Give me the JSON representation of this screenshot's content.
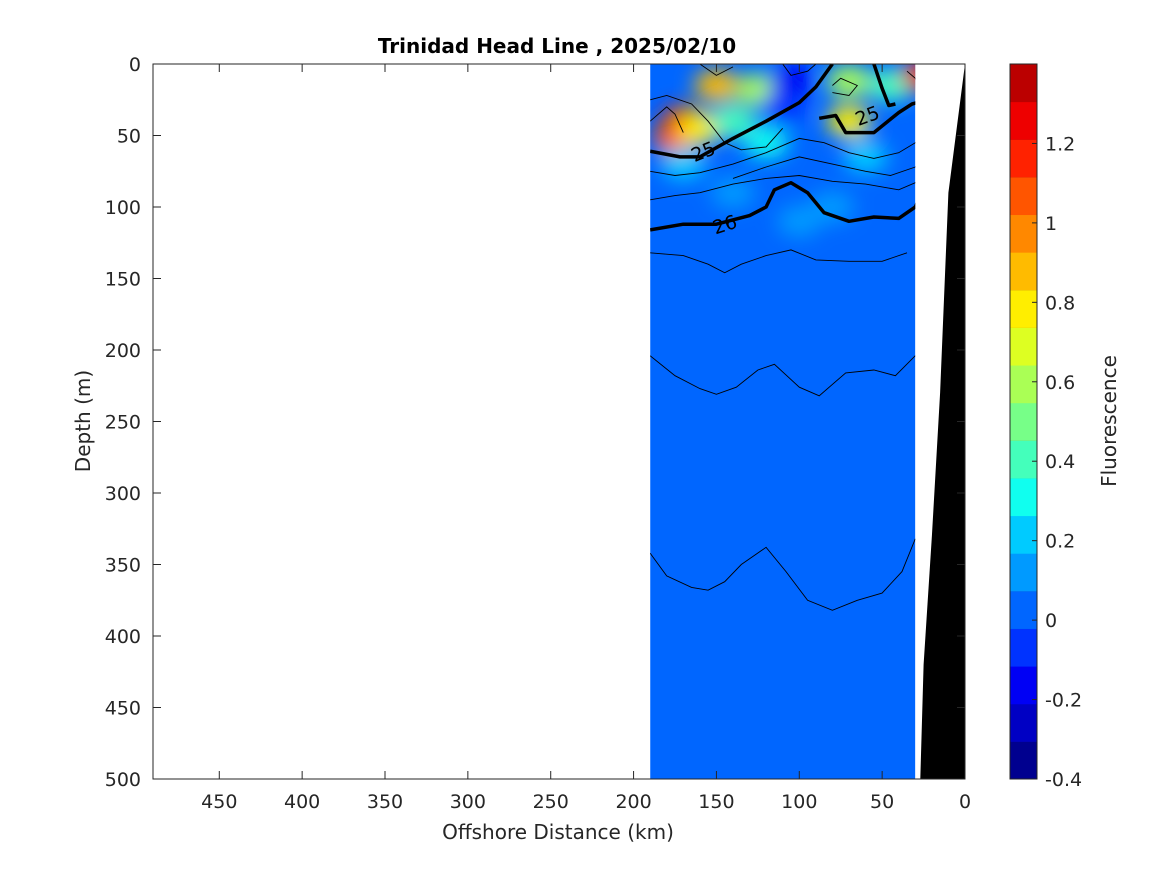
{
  "chart_data": {
    "type": "heatmap",
    "title": "Trinidad Head Line , 2025/02/10",
    "xlabel": "Offshore Distance (km)",
    "ylabel": "Depth (m)",
    "xlim": [
      490,
      0
    ],
    "ylim": [
      0,
      500
    ],
    "x_reversed": true,
    "y_reversed": true,
    "xticks": [
      450,
      400,
      350,
      300,
      250,
      200,
      150,
      100,
      50,
      0
    ],
    "yticks": [
      0,
      50,
      100,
      150,
      200,
      250,
      300,
      350,
      400,
      450,
      500
    ],
    "colorbar": {
      "label": "Fluorescence",
      "range": [
        -0.4,
        1.4
      ],
      "ticks": [
        "-0.4",
        "-0.2",
        "0",
        "0.2",
        "0.4",
        "0.6",
        "0.8",
        "1",
        "1.2"
      ],
      "tick_values": [
        -0.4,
        -0.2,
        0,
        0.2,
        0.4,
        0.6,
        0.8,
        1.0,
        1.2
      ],
      "colors": [
        "#00008f",
        "#0000c4",
        "#0000f5",
        "#0033ff",
        "#0066ff",
        "#009aff",
        "#00cbff",
        "#10ffef",
        "#44ffbb",
        "#77ff88",
        "#aaff55",
        "#ddff22",
        "#ffee00",
        "#ffbb00",
        "#ff8800",
        "#ff5500",
        "#ff2200",
        "#ee0000",
        "#bb0000"
      ]
    },
    "data_extent_km": [
      190,
      30
    ],
    "background_value": 0.05,
    "patches": [
      {
        "x": 170,
        "y": 40,
        "value": 1.25
      },
      {
        "x": 175,
        "y": 52,
        "value": 1.05
      },
      {
        "x": 150,
        "y": 15,
        "value": 0.9
      },
      {
        "x": 160,
        "y": 45,
        "value": 0.8
      },
      {
        "x": 125,
        "y": 18,
        "value": 0.55
      },
      {
        "x": 105,
        "y": 12,
        "value": -0.15
      },
      {
        "x": 110,
        "y": 30,
        "value": -0.05
      },
      {
        "x": 70,
        "y": 12,
        "value": 0.6
      },
      {
        "x": 70,
        "y": 40,
        "value": 0.8
      },
      {
        "x": 45,
        "y": 15,
        "value": 0.45
      },
      {
        "x": 25,
        "y": 8,
        "value": 1.3
      },
      {
        "x": 140,
        "y": 40,
        "value": 0.45
      },
      {
        "x": 120,
        "y": 55,
        "value": 0.3
      },
      {
        "x": 60,
        "y": 65,
        "value": 0.25
      },
      {
        "x": 170,
        "y": 70,
        "value": 0.2
      },
      {
        "x": 140,
        "y": 90,
        "value": 0.1
      },
      {
        "x": 80,
        "y": 100,
        "value": 0.15
      },
      {
        "x": 100,
        "y": 110,
        "value": 0.12
      }
    ],
    "density_contours": [
      {
        "label": "25",
        "points": [
          [
            190,
            61
          ],
          [
            172,
            65
          ],
          [
            160,
            65
          ],
          [
            140,
            52
          ],
          [
            120,
            40
          ],
          [
            100,
            27
          ],
          [
            90,
            16
          ],
          [
            80,
            0
          ]
        ]
      },
      {
        "label": "25",
        "points": [
          [
            88,
            38
          ],
          [
            78,
            36
          ],
          [
            72,
            48
          ],
          [
            55,
            48
          ],
          [
            40,
            34
          ],
          [
            32,
            28
          ],
          [
            22,
            25
          ]
        ]
      },
      {
        "label": "25",
        "points": [
          [
            55,
            0
          ],
          [
            50,
            17
          ],
          [
            46,
            29
          ],
          [
            42,
            28
          ]
        ]
      },
      {
        "label": "26",
        "points": [
          [
            190,
            116
          ],
          [
            170,
            112
          ],
          [
            150,
            112
          ],
          [
            130,
            106
          ],
          [
            120,
            100
          ],
          [
            115,
            88
          ],
          [
            105,
            83
          ],
          [
            95,
            90
          ],
          [
            85,
            104
          ],
          [
            70,
            110
          ],
          [
            55,
            107
          ],
          [
            40,
            108
          ],
          [
            30,
            100
          ],
          [
            22,
            80
          ]
        ]
      }
    ],
    "contour_labels": [
      {
        "text": "25",
        "x": 158,
        "y": 61,
        "angle": -22
      },
      {
        "text": "25",
        "x": 59,
        "y": 36,
        "angle": -20
      },
      {
        "text": "26",
        "x": 145,
        "y": 112,
        "angle": -18
      }
    ],
    "thin_contours": [
      [
        [
          190,
          25
        ],
        [
          180,
          22
        ],
        [
          165,
          28
        ],
        [
          155,
          40
        ],
        [
          145,
          55
        ],
        [
          135,
          60
        ],
        [
          120,
          58
        ],
        [
          110,
          45
        ]
      ],
      [
        [
          190,
          40
        ],
        [
          180,
          30
        ],
        [
          175,
          35
        ],
        [
          170,
          48
        ]
      ],
      [
        [
          190,
          75
        ],
        [
          175,
          78
        ],
        [
          160,
          76
        ],
        [
          140,
          70
        ],
        [
          120,
          62
        ],
        [
          100,
          52
        ],
        [
          85,
          55
        ],
        [
          70,
          62
        ],
        [
          55,
          66
        ],
        [
          40,
          62
        ],
        [
          30,
          55
        ],
        [
          22,
          48
        ]
      ],
      [
        [
          140,
          80
        ],
        [
          120,
          72
        ],
        [
          100,
          65
        ],
        [
          80,
          70
        ],
        [
          60,
          75
        ],
        [
          45,
          78
        ],
        [
          30,
          72
        ],
        [
          22,
          60
        ]
      ],
      [
        [
          190,
          95
        ],
        [
          175,
          92
        ],
        [
          160,
          90
        ],
        [
          140,
          84
        ],
        [
          120,
          80
        ],
        [
          100,
          78
        ],
        [
          80,
          82
        ],
        [
          60,
          84
        ],
        [
          40,
          88
        ],
        [
          28,
          82
        ]
      ],
      [
        [
          190,
          132
        ],
        [
          170,
          134
        ],
        [
          155,
          140
        ],
        [
          145,
          146
        ],
        [
          135,
          140
        ],
        [
          120,
          134
        ],
        [
          105,
          130
        ],
        [
          90,
          137
        ],
        [
          70,
          138
        ],
        [
          50,
          138
        ],
        [
          35,
          132
        ]
      ],
      [
        [
          190,
          204
        ],
        [
          175,
          218
        ],
        [
          160,
          227
        ],
        [
          150,
          231
        ],
        [
          138,
          226
        ],
        [
          125,
          214
        ],
        [
          115,
          210
        ],
        [
          100,
          226
        ],
        [
          88,
          232
        ],
        [
          72,
          216
        ],
        [
          55,
          214
        ],
        [
          42,
          218
        ],
        [
          30,
          204
        ]
      ],
      [
        [
          190,
          342
        ],
        [
          180,
          358
        ],
        [
          165,
          366
        ],
        [
          155,
          368
        ],
        [
          145,
          362
        ],
        [
          135,
          350
        ],
        [
          120,
          338
        ],
        [
          108,
          355
        ],
        [
          95,
          375
        ],
        [
          80,
          382
        ],
        [
          65,
          375
        ],
        [
          50,
          370
        ],
        [
          38,
          355
        ],
        [
          30,
          332
        ]
      ]
    ],
    "thin_contours_top": [
      [
        [
          110,
          0
        ],
        [
          105,
          8
        ],
        [
          95,
          5
        ],
        [
          90,
          0
        ]
      ],
      [
        [
          80,
          15
        ],
        [
          75,
          10
        ],
        [
          65,
          15
        ],
        [
          70,
          22
        ],
        [
          80,
          20
        ]
      ],
      [
        [
          160,
          0
        ],
        [
          150,
          8
        ],
        [
          140,
          2
        ]
      ],
      [
        [
          35,
          5
        ],
        [
          30,
          10
        ],
        [
          28,
          15
        ],
        [
          24,
          0
        ]
      ]
    ],
    "bathymetry": {
      "fill": "#000000",
      "points": [
        [
          0,
          0
        ],
        [
          10,
          90
        ],
        [
          15,
          230
        ],
        [
          20,
          330
        ],
        [
          25,
          420
        ],
        [
          27,
          500
        ],
        [
          0,
          500
        ]
      ]
    }
  }
}
